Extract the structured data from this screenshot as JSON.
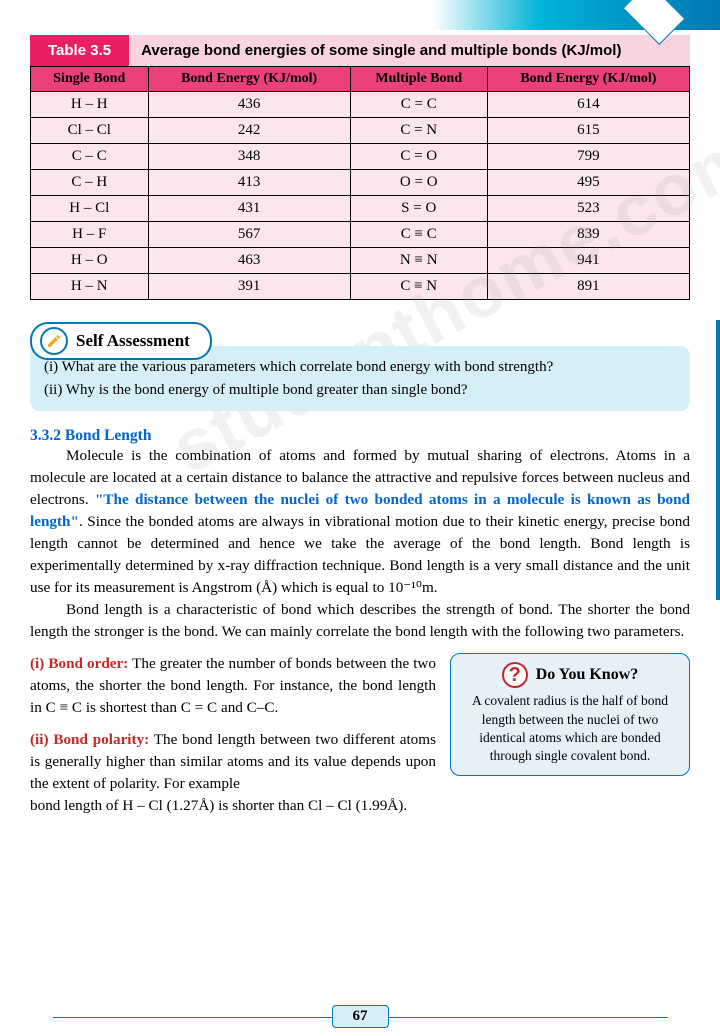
{
  "table": {
    "tag": "Table 3.5",
    "caption": "Average bond energies of some single and multiple bonds (KJ/mol)",
    "headers": [
      "Single Bond",
      "Bond Energy (KJ/mol)",
      "Multiple Bond",
      "Bond Energy (KJ/mol)"
    ],
    "rows": [
      [
        "H – H",
        "436",
        "C = C",
        "614"
      ],
      [
        "Cl – Cl",
        "242",
        "C = N",
        "615"
      ],
      [
        "C – C",
        "348",
        "C = O",
        "799"
      ],
      [
        "C – H",
        "413",
        "O = O",
        "495"
      ],
      [
        "H – Cl",
        "431",
        "S = O",
        "523"
      ],
      [
        "H – F",
        "567",
        "C ≡ C",
        "839"
      ],
      [
        "H – O",
        "463",
        "N ≡ N",
        "941"
      ],
      [
        "H – N",
        "391",
        "C ≡ N",
        "891"
      ]
    ]
  },
  "selfAssessment": {
    "title": "Self Assessment",
    "q1": "(i) What are the various parameters which correlate bond energy with bond strength?",
    "q2": "(ii) Why is the bond energy of multiple bond greater than single bond?"
  },
  "section": {
    "heading": "3.3.2 Bond Length",
    "p1a": "Molecule is the combination of atoms and formed by mutual sharing of electrons. Atoms in a molecule are located at a certain distance to balance the attractive and repulsive forces between nucleus and electrons. ",
    "p1highlight": "\"The distance between the nuclei of two bonded atoms in a molecule is known as bond length\"",
    "p1b": ". Since the bonded atoms are always in vibrational motion due to their kinetic energy, precise bond length cannot be determined and hence we take the average of the bond length. Bond length is experimentally determined by x-ray diffraction technique. Bond length is a very small distance and the unit use for its measurement is Angstrom (Å) which is equal to 10⁻¹⁰m.",
    "p2": "Bond length is a characteristic of bond which describes the strength of bond. The shorter the bond length the stronger is the bond. We can mainly correlate the bond length with the following two parameters."
  },
  "bondOrder": {
    "label": "(i) Bond order:",
    "text": " The greater the number of bonds between the two atoms, the shorter the bond length. For instance, the bond length in C ≡ C is shortest than C = C and C–C."
  },
  "bondPolarity": {
    "label": "(ii) Bond polarity:",
    "text1": " The bond length between two different atoms is generally higher than similar atoms and its value depends upon the extent of polarity. For example",
    "text2": "bond length of H – Cl (1.27Å) is shorter than Cl – Cl (1.99Å)."
  },
  "doYouKnow": {
    "title": "Do You Know?",
    "body": "A covalent radius is the half of bond length between the nuclei of two identical atoms which are bonded through single covalent bond."
  },
  "pageNumber": "67",
  "watermark": "studenthome.com"
}
